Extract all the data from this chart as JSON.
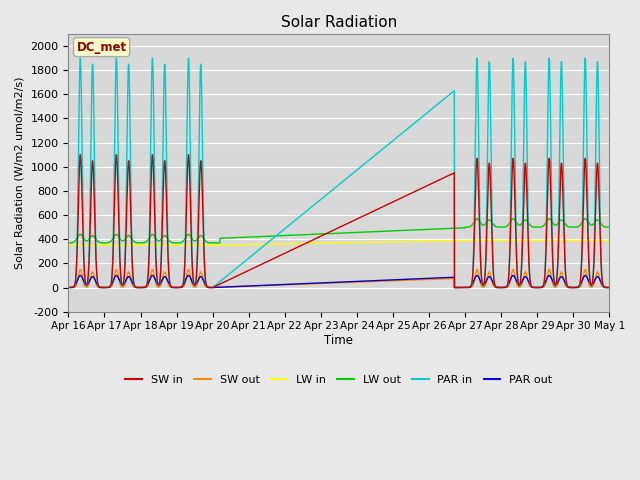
{
  "title": "Solar Radiation",
  "ylabel": "Solar Radiation (W/m2 umol/m2/s)",
  "xlabel": "Time",
  "ylim": [
    -200,
    2100
  ],
  "yticks": [
    -200,
    0,
    200,
    400,
    600,
    800,
    1000,
    1200,
    1400,
    1600,
    1800,
    2000
  ],
  "background_color": "#e8e8e8",
  "plot_bg_color": "#d8d8d8",
  "grid_color": "#ffffff",
  "annotation_text": "DC_met",
  "annotation_color": "#8b0000",
  "annotation_bg": "#ffffcc",
  "x_tick_labels": [
    "Apr 16",
    "Apr 17",
    "Apr 18",
    "Apr 19",
    "Apr 20",
    "Apr 21",
    "Apr 22",
    "Apr 23",
    "Apr 24",
    "Apr 25",
    "Apr 26",
    "Apr 27",
    "Apr 28",
    "Apr 29",
    "Apr 30",
    "May 1"
  ],
  "legend_entries": [
    "SW in",
    "SW out",
    "LW in",
    "LW out",
    "PAR in",
    "PAR out"
  ],
  "legend_colors": [
    "#cc0000",
    "#ff8800",
    "#ffff00",
    "#00cc00",
    "#00cccc",
    "#0000cc"
  ]
}
